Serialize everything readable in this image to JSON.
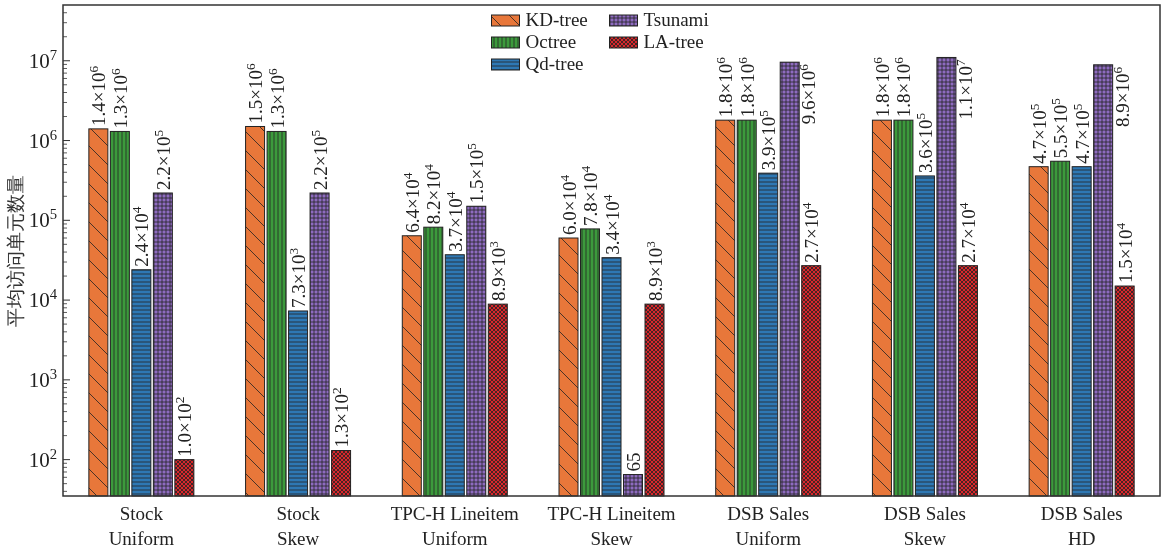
{
  "chart_data": {
    "type": "bar",
    "ylabel": "平均访问单元数量",
    "log": "y",
    "ylim": [
      35,
      50000000
    ],
    "yticks": [
      {
        "value": 100,
        "label": "10$^{2}$"
      },
      {
        "value": 1000,
        "label": "10$^{3}$"
      },
      {
        "value": 10000,
        "label": "10$^{4}$"
      },
      {
        "value": 100000,
        "label": "10$^{5}$"
      },
      {
        "value": 1000000,
        "label": "10$^{6}$"
      },
      {
        "value": 10000000,
        "label": "10$^{7}$"
      }
    ],
    "categories": [
      "Stock Uniform",
      "Stock Skew",
      "TPC-H Lineitem Uniform",
      "TPC-H Lineitem Skew",
      "DSB Sales Uniform",
      "DSB Sales Skew",
      "DSB Sales HD"
    ],
    "legend": "top",
    "series": [
      {
        "name": "KD-tree",
        "color": "#e8773a",
        "values": [
          1400000,
          1500000,
          64000,
          60000,
          1800000,
          1800000,
          470000
        ],
        "value_labels": [
          "1.4×10$^{6}$",
          "1.5×10$^{6}$",
          "6.4×10$^{4}$",
          "6.0×10$^{4}$",
          "1.8×10$^{6}$",
          "1.8×10$^{6}$",
          "4.7×10$^{5}$"
        ]
      },
      {
        "name": "Octree",
        "color": "#3c9a3c",
        "values": [
          1300000,
          1300000,
          82000,
          78000,
          1800000,
          1800000,
          550000
        ],
        "value_labels": [
          "1.3×10$^{6}$",
          "1.3×10$^{6}$",
          "8.2×10$^{4}$",
          "7.8×10$^{4}$",
          "1.8×10$^{6}$",
          "1.8×10$^{6}$",
          "5.5×10$^{5}$"
        ]
      },
      {
        "name": "Qd-tree",
        "color": "#2e78b4",
        "values": [
          24000,
          7300,
          37000,
          34000,
          390000,
          360000,
          470000
        ],
        "value_labels": [
          "2.4×10$^{4}$",
          "7.3×10$^{3}$",
          "3.7×10$^{4}$",
          "3.4×10$^{4}$",
          "3.9×10$^{5}$",
          "3.6×10$^{5}$",
          "4.7×10$^{5}$"
        ]
      },
      {
        "name": "Tsunami",
        "color": "#8e6bc0",
        "values": [
          220000,
          220000,
          150000,
          65,
          9600000,
          11000000,
          8900000
        ],
        "value_labels": [
          "2.2×10$^{5}$",
          "2.2×10$^{5}$",
          "1.5×10$^{5}$",
          "65",
          "9.6×10$^{6}$",
          "1.1×10$^{7}$",
          "8.9×10$^{6}$"
        ]
      },
      {
        "name": "LA-tree",
        "color": "#d8282c",
        "values": [
          100,
          130,
          8900,
          8900,
          27000,
          27000,
          15000
        ],
        "value_labels": [
          "1.0×10$^{2}$",
          "1.3×10$^{2}$",
          "8.9×10$^{3}$",
          "8.9×10$^{3}$",
          "2.7×10$^{4}$",
          "2.7×10$^{4}$",
          "1.5×10$^{4}$"
        ]
      }
    ]
  }
}
